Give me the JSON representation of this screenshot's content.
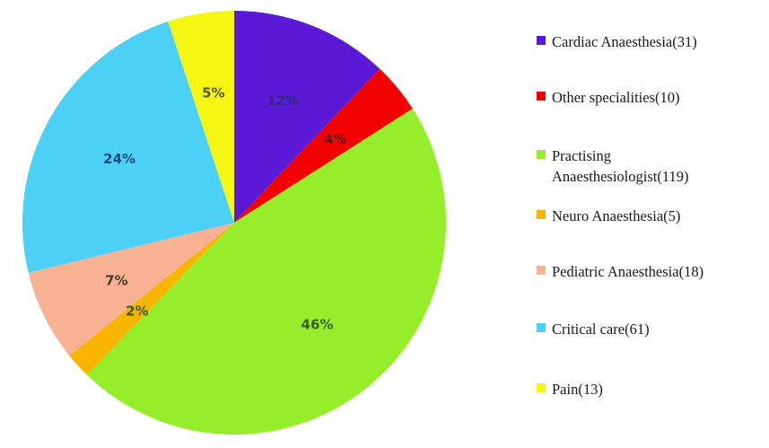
{
  "chart_data": {
    "type": "pie",
    "title": "",
    "start_angle_deg": 0,
    "direction": "clockwise",
    "legend_position": "right",
    "slices": [
      {
        "label": "Cardiac Anaesthesia(31)",
        "value": 31,
        "percent_label": "12%",
        "color": "#5b18d6",
        "label_color": "#2b2b7a"
      },
      {
        "label": "Other specialities(10)",
        "value": 10,
        "percent_label": "4%",
        "color": "#f30202",
        "label_color": "#5a1a1a"
      },
      {
        "label": "Practising Anaesthesiologist(119)",
        "value": 119,
        "percent_label": "46%",
        "color": "#96ee2a",
        "label_color": "#3d5a14"
      },
      {
        "label": "Neuro Anaesthesia(5)",
        "value": 5,
        "percent_label": "2%",
        "color": "#f7b500",
        "label_color": "#3d5a14"
      },
      {
        "label": "Pediatric Anaesthesia(18)",
        "value": 18,
        "percent_label": "7%",
        "color": "#f6b293",
        "label_color": "#4a3a30"
      },
      {
        "label": "Critical care(61)",
        "value": 61,
        "percent_label": "24%",
        "color": "#4dd0f5",
        "label_color": "#17477a"
      },
      {
        "label": "Pain(13)",
        "value": 13,
        "percent_label": "5%",
        "color": "#f6f614",
        "label_color": "#5a5a18"
      }
    ],
    "legend": [
      {
        "text": "Cardiac Anaesthesia(31)",
        "color": "#5b18d6"
      },
      {
        "text": "Other specialities(10)",
        "color": "#f30202"
      },
      {
        "text": "Practising Anaesthesiologist(119)",
        "color": "#96ee2a"
      },
      {
        "text": "Neuro Anaesthesia(5)",
        "color": "#f7b500"
      },
      {
        "text": "Pediatric Anaesthesia(18)",
        "color": "#f6b293"
      },
      {
        "text": "Critical care(61)",
        "color": "#4dd0f5"
      },
      {
        "text": "Pain(13)",
        "color": "#f6f614"
      }
    ]
  }
}
